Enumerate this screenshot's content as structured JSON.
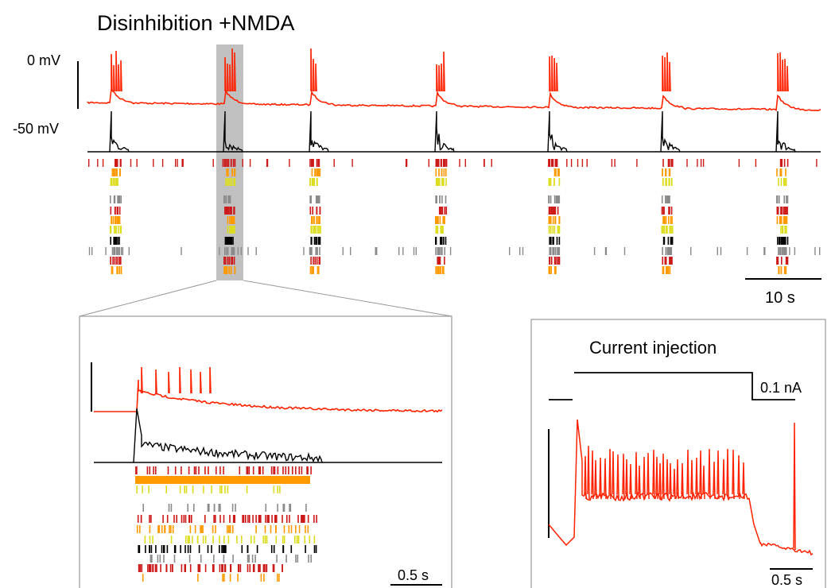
{
  "title": "Disinhibition +NMDA",
  "scale_labels": {
    "voltage_top": "0 mV",
    "voltage_bottom": "-50 mV",
    "main_time": "10 s",
    "inset_time": "0.5 s",
    "current": "0.1 nA",
    "injection_time": "0.5 s"
  },
  "injection_title": "Current injection",
  "colors": {
    "red_trace": "#ff2200",
    "black_trace": "#000000",
    "highlight": "#c0c0c0",
    "raster_red": "#cc1a1a",
    "raster_orange": "#ff9900",
    "raster_yellow": "#dddd22",
    "raster_gray": "#8a8a8a",
    "frame": "#999999"
  }
}
